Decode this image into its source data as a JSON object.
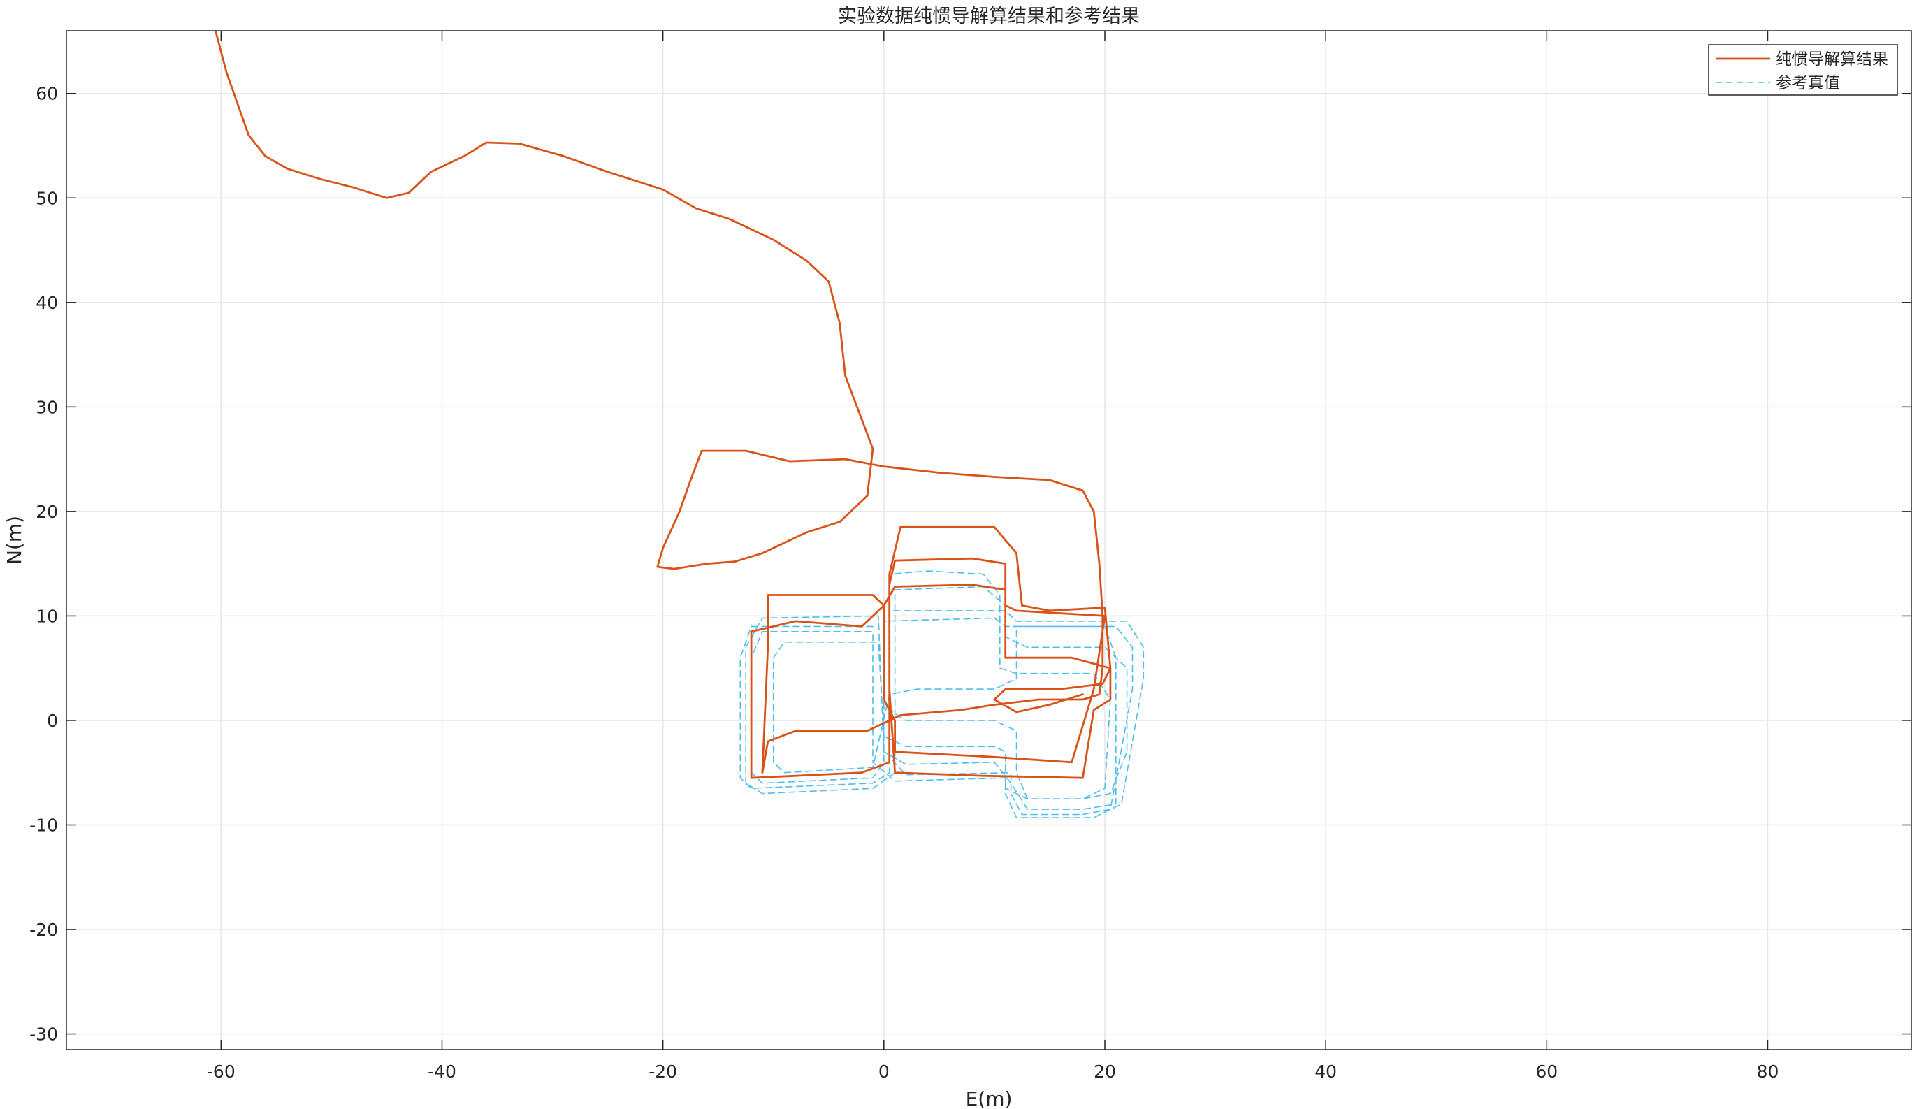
{
  "chart_data": {
    "type": "line",
    "title": "实验数据纯惯导解算结果和参考结果",
    "xlabel": "E(m)",
    "ylabel": "N(m)",
    "xlim": [
      -74,
      93
    ],
    "ylim": [
      -31.5,
      66
    ],
    "x_ticks": [
      -60,
      -40,
      -20,
      0,
      20,
      40,
      60,
      80
    ],
    "y_ticks": [
      -30,
      -20,
      -10,
      0,
      10,
      20,
      30,
      40,
      50,
      60
    ],
    "grid": true,
    "legend_position": "top-right",
    "colors": {
      "ins": "#D95319",
      "reference": "#4DBEEE",
      "axis": "#262626",
      "grid": "#e6e6e6"
    },
    "series": [
      {
        "name": "纯惯导解算结果",
        "style": "solid",
        "color": "#D95319",
        "points": [
          [
            -60.5,
            66
          ],
          [
            -59.5,
            62
          ],
          [
            -58.5,
            59
          ],
          [
            -57.5,
            56
          ],
          [
            -56,
            54
          ],
          [
            -54,
            52.8
          ],
          [
            -51,
            51.8
          ],
          [
            -48,
            51
          ],
          [
            -45,
            50
          ],
          [
            -43,
            50.5
          ],
          [
            -41,
            52.5
          ],
          [
            -38,
            54
          ],
          [
            -36,
            55.3
          ],
          [
            -33,
            55.2
          ],
          [
            -29,
            54
          ],
          [
            -25,
            52.5
          ],
          [
            -20,
            50.8
          ],
          [
            -17,
            49
          ],
          [
            -14,
            48
          ],
          [
            -10,
            46
          ],
          [
            -7,
            44
          ],
          [
            -5,
            42
          ],
          [
            -4,
            38
          ],
          [
            -3.5,
            33
          ],
          [
            -1,
            26
          ],
          [
            -1.5,
            21.5
          ],
          [
            -4,
            19
          ],
          [
            -7,
            18
          ],
          [
            -11,
            16
          ],
          [
            -13.5,
            15.2
          ],
          [
            -16,
            15
          ],
          [
            -19,
            14.5
          ],
          [
            -20.5,
            14.7
          ],
          [
            -20,
            16.5
          ],
          [
            -18.5,
            20
          ],
          [
            -17.5,
            23
          ],
          [
            -16.5,
            25.8
          ],
          [
            -12.5,
            25.8
          ],
          [
            -8.5,
            24.8
          ],
          [
            -3.5,
            25
          ],
          [
            0,
            24.3
          ],
          [
            5,
            23.7
          ],
          [
            10,
            23.3
          ],
          [
            15,
            23
          ],
          [
            18,
            22
          ],
          [
            19,
            20
          ],
          [
            19.5,
            15
          ],
          [
            19.8,
            10
          ],
          [
            19.8,
            5
          ],
          [
            19.5,
            2.5
          ],
          [
            18,
            2
          ],
          [
            14,
            2
          ],
          [
            10,
            1.5
          ],
          [
            7,
            1
          ],
          [
            1.5,
            0.5
          ],
          [
            -1.5,
            -1
          ],
          [
            -8,
            -1
          ],
          [
            -10.5,
            -2
          ],
          [
            -11,
            -5
          ],
          [
            -10.5,
            7
          ],
          [
            -10.5,
            12
          ],
          [
            -1,
            12
          ],
          [
            0,
            11
          ],
          [
            0,
            2
          ],
          [
            1,
            0
          ],
          [
            1,
            -3
          ],
          [
            10,
            -3.5
          ],
          [
            17,
            -4
          ],
          [
            19,
            3
          ],
          [
            20,
            10
          ],
          [
            12,
            10.5
          ],
          [
            11,
            11
          ],
          [
            11,
            15
          ],
          [
            8,
            15.5
          ],
          [
            1,
            15.3
          ],
          [
            0.5,
            13
          ],
          [
            0.5,
            3
          ],
          [
            1,
            -5
          ],
          [
            9,
            -5.3
          ],
          [
            18,
            -5.5
          ],
          [
            19,
            1
          ],
          [
            20.5,
            2
          ],
          [
            20.5,
            5
          ],
          [
            17,
            6
          ],
          [
            11,
            6
          ],
          [
            11,
            12.5
          ],
          [
            8,
            13
          ],
          [
            1,
            12.8
          ],
          [
            0,
            11
          ],
          [
            -2,
            9
          ],
          [
            -8,
            9.5
          ],
          [
            -12,
            8.5
          ],
          [
            -12,
            -5.5
          ],
          [
            -2,
            -5
          ],
          [
            0.5,
            -4
          ],
          [
            0.5,
            14
          ],
          [
            1.5,
            18.5
          ],
          [
            10,
            18.5
          ],
          [
            12,
            16
          ],
          [
            12.5,
            11
          ],
          [
            15,
            10.5
          ],
          [
            20,
            10.8
          ],
          [
            20.5,
            5
          ],
          [
            19.8,
            3.5
          ],
          [
            16,
            3
          ],
          [
            11,
            3
          ],
          [
            10,
            2
          ],
          [
            12,
            0.8
          ],
          [
            15,
            1.5
          ],
          [
            18,
            2.5
          ]
        ]
      },
      {
        "name": "参考真值",
        "style": "dashed",
        "color": "#4DBEEE",
        "points": [
          [
            -1,
            9
          ],
          [
            -12,
            9
          ],
          [
            -13,
            6
          ],
          [
            -13,
            -5.5
          ],
          [
            -12,
            -6.5
          ],
          [
            -1,
            -6
          ],
          [
            0.5,
            -5
          ],
          [
            0.5,
            10.5
          ],
          [
            11,
            10.5
          ],
          [
            12,
            9.5
          ],
          [
            22,
            9.5
          ],
          [
            23.5,
            7
          ],
          [
            23.5,
            4
          ],
          [
            21.5,
            -8
          ],
          [
            19,
            -9.3
          ],
          [
            12,
            -9.3
          ],
          [
            11,
            -7
          ],
          [
            11,
            -5.5
          ],
          [
            1,
            -5.8
          ],
          [
            -1,
            -4
          ],
          [
            -1,
            8.5
          ],
          [
            -11,
            8.5
          ],
          [
            -12,
            6
          ],
          [
            -12,
            -5
          ],
          [
            -11,
            -6
          ],
          [
            -1,
            -5.5
          ],
          [
            0,
            -4
          ],
          [
            0,
            9.5
          ],
          [
            10,
            9.8
          ],
          [
            11,
            9
          ],
          [
            21,
            9
          ],
          [
            22.5,
            7
          ],
          [
            22.5,
            3
          ],
          [
            20.5,
            -8.5
          ],
          [
            18,
            -9
          ],
          [
            12.5,
            -9
          ],
          [
            11.5,
            -7
          ],
          [
            11.5,
            -5
          ],
          [
            2,
            -5.2
          ],
          [
            0.5,
            -3.5
          ],
          [
            0.5,
            14
          ],
          [
            4,
            14.3
          ],
          [
            9,
            14
          ],
          [
            10.5,
            12
          ],
          [
            10.5,
            5
          ],
          [
            12,
            4.5
          ],
          [
            19,
            4.5
          ],
          [
            20.5,
            2
          ],
          [
            20,
            -6.5
          ],
          [
            18,
            -7.5
          ],
          [
            13,
            -7.5
          ],
          [
            11,
            -6.5
          ],
          [
            11,
            -3
          ],
          [
            10,
            -2.5
          ],
          [
            2,
            -2.5
          ],
          [
            0,
            -1.5
          ],
          [
            -0.5,
            7.5
          ],
          [
            -9,
            7.5
          ],
          [
            -10,
            6
          ],
          [
            -10,
            -4
          ],
          [
            -9,
            -5
          ],
          [
            -1,
            -4.5
          ],
          [
            0.5,
            2.5
          ],
          [
            3,
            3
          ],
          [
            10,
            3
          ],
          [
            12,
            4
          ],
          [
            12,
            9
          ],
          [
            20,
            9
          ],
          [
            21,
            6
          ],
          [
            21,
            -8
          ],
          [
            18,
            -8.5
          ],
          [
            13,
            -8.5
          ],
          [
            11.5,
            -6
          ],
          [
            10,
            -4
          ],
          [
            2,
            -4.2
          ],
          [
            0,
            -3
          ],
          [
            -0.5,
            10
          ],
          [
            -11,
            9.8
          ],
          [
            -12.5,
            7
          ],
          [
            -12.5,
            -6
          ],
          [
            -11,
            -7
          ],
          [
            -1,
            -6.5
          ],
          [
            1,
            -5
          ],
          [
            1,
            12.5
          ],
          [
            9,
            12.8
          ],
          [
            11,
            11
          ],
          [
            11,
            8
          ],
          [
            13,
            7
          ],
          [
            20,
            7
          ],
          [
            22,
            5
          ],
          [
            22,
            -3
          ],
          [
            20.5,
            -7
          ],
          [
            18,
            -7.5
          ],
          [
            13,
            -7.5
          ],
          [
            12,
            -5
          ],
          [
            12,
            -1
          ],
          [
            10,
            0
          ],
          [
            2,
            0
          ],
          [
            0.5,
            1
          ],
          [
            0.5,
            7
          ]
        ]
      }
    ]
  }
}
